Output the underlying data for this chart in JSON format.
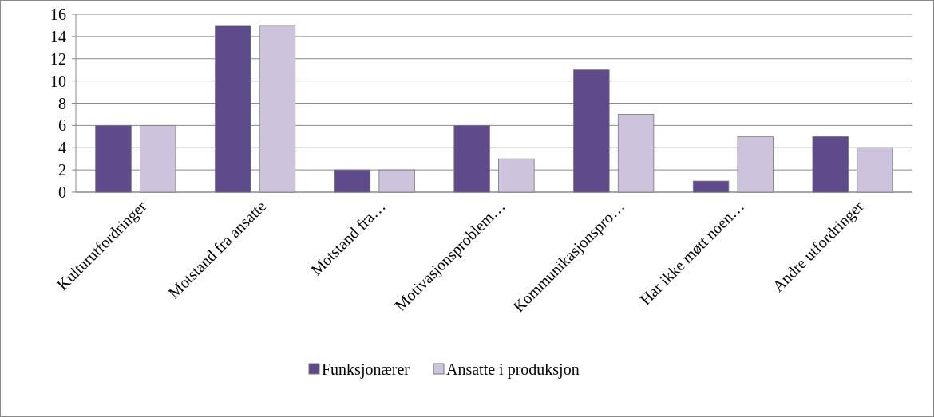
{
  "chart_data": {
    "type": "bar",
    "categories": [
      "Kulturutfordringer",
      "Motstand fra ansatte",
      "Motstand fra…",
      "Motivasjonsproblem…",
      "Kommunikasjonspro…",
      "Har ikke møtt noen…",
      "Andre utfordringer"
    ],
    "series": [
      {
        "name": "Funksjonærer",
        "color": "#5f4a8b",
        "values": [
          6,
          15,
          2,
          6,
          11,
          1,
          5
        ]
      },
      {
        "name": "Ansatte i produksjon",
        "color": "#cdc3dc",
        "values": [
          6,
          15,
          2,
          3,
          7,
          5,
          4
        ]
      }
    ],
    "ylim": [
      0,
      16
    ],
    "yticks": [
      0,
      2,
      4,
      6,
      8,
      10,
      12,
      14,
      16
    ],
    "grid": "y",
    "legend": "bottom"
  }
}
